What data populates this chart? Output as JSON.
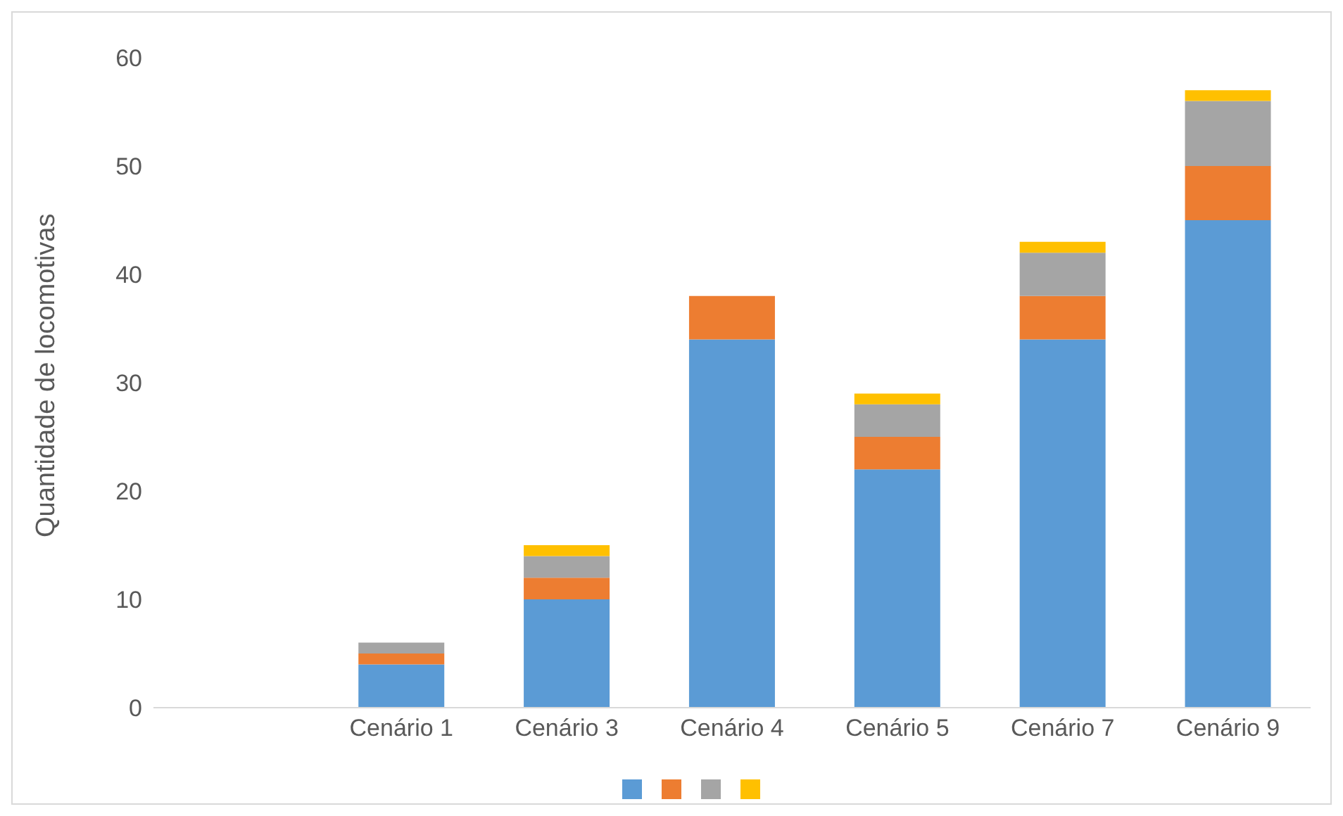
{
  "chart_data": {
    "type": "bar",
    "stacked": true,
    "ylabel": "Quantidade de locomotivas",
    "categories": [
      null,
      "Cenário 1",
      "Cenário 3",
      "Cenário 4",
      "Cenário 5",
      "Cenário 7",
      "Cenário 9"
    ],
    "series": [
      {
        "color": "#5b9bd5",
        "values": [
          null,
          4,
          10,
          34,
          22,
          34,
          45
        ]
      },
      {
        "color": "#ed7d31",
        "values": [
          null,
          1,
          2,
          4,
          3,
          4,
          5
        ]
      },
      {
        "color": "#a5a5a5",
        "values": [
          null,
          1,
          2,
          0,
          3,
          4,
          6
        ]
      },
      {
        "color": "#ffc000",
        "values": [
          null,
          0,
          1,
          0,
          1,
          1,
          1
        ]
      }
    ],
    "ylim": [
      0,
      60
    ],
    "yticks": [
      0,
      10,
      20,
      30,
      40,
      50,
      60
    ],
    "grid": false
  }
}
